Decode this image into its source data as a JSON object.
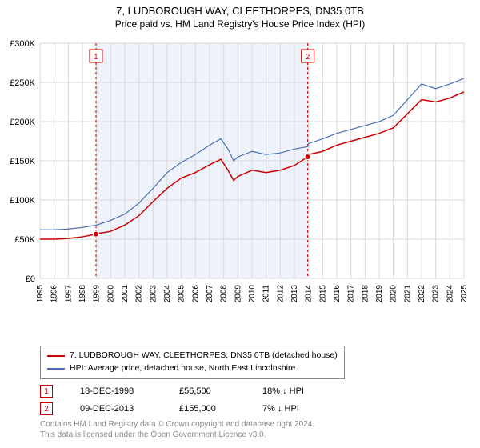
{
  "title": "7, LUDBOROUGH WAY, CLEETHORPES, DN35 0TB",
  "subtitle": "Price paid vs. HM Land Registry's House Price Index (HPI)",
  "chart": {
    "type": "line",
    "background_color": "#ffffff",
    "grid_color": "#d8d8d8",
    "shade_color": "#eef2fa",
    "shade_start_year": 1998.96,
    "shade_end_year": 2013.94,
    "marker_line_color": "#cc0000",
    "marker_line_dash": "3,3",
    "xlim": [
      1995,
      2025
    ],
    "ylim": [
      0,
      300000
    ],
    "ytick_step": 50000,
    "ytick_prefix": "£",
    "ytick_suffix": "K",
    "xticks": [
      1995,
      1996,
      1997,
      1998,
      1999,
      2000,
      2001,
      2002,
      2003,
      2004,
      2005,
      2006,
      2007,
      2008,
      2009,
      2010,
      2011,
      2012,
      2013,
      2014,
      2015,
      2016,
      2017,
      2018,
      2019,
      2020,
      2021,
      2022,
      2023,
      2024,
      2025
    ],
    "series": [
      {
        "key": "property",
        "color": "#cc0000",
        "width": 1.5,
        "points": [
          {
            "x": 1995,
            "y": 50000
          },
          {
            "x": 1996,
            "y": 50000
          },
          {
            "x": 1997,
            "y": 51000
          },
          {
            "x": 1998,
            "y": 53000
          },
          {
            "x": 1998.96,
            "y": 56500
          },
          {
            "x": 1999,
            "y": 57000
          },
          {
            "x": 2000,
            "y": 60000
          },
          {
            "x": 2001,
            "y": 68000
          },
          {
            "x": 2002,
            "y": 80000
          },
          {
            "x": 2003,
            "y": 98000
          },
          {
            "x": 2004,
            "y": 115000
          },
          {
            "x": 2005,
            "y": 128000
          },
          {
            "x": 2006,
            "y": 135000
          },
          {
            "x": 2007,
            "y": 145000
          },
          {
            "x": 2007.8,
            "y": 152000
          },
          {
            "x": 2008.3,
            "y": 138000
          },
          {
            "x": 2008.7,
            "y": 125000
          },
          {
            "x": 2009,
            "y": 130000
          },
          {
            "x": 2010,
            "y": 138000
          },
          {
            "x": 2011,
            "y": 135000
          },
          {
            "x": 2012,
            "y": 138000
          },
          {
            "x": 2013,
            "y": 144000
          },
          {
            "x": 2013.94,
            "y": 155000
          },
          {
            "x": 2014,
            "y": 158000
          },
          {
            "x": 2015,
            "y": 162000
          },
          {
            "x": 2016,
            "y": 170000
          },
          {
            "x": 2017,
            "y": 175000
          },
          {
            "x": 2018,
            "y": 180000
          },
          {
            "x": 2019,
            "y": 185000
          },
          {
            "x": 2020,
            "y": 192000
          },
          {
            "x": 2021,
            "y": 210000
          },
          {
            "x": 2022,
            "y": 228000
          },
          {
            "x": 2023,
            "y": 225000
          },
          {
            "x": 2024,
            "y": 230000
          },
          {
            "x": 2025,
            "y": 238000
          }
        ]
      },
      {
        "key": "hpi",
        "color": "#4a6fb3",
        "width": 1.2,
        "points": [
          {
            "x": 1995,
            "y": 62000
          },
          {
            "x": 1996,
            "y": 62000
          },
          {
            "x": 1997,
            "y": 63000
          },
          {
            "x": 1998,
            "y": 65000
          },
          {
            "x": 1999,
            "y": 68000
          },
          {
            "x": 2000,
            "y": 74000
          },
          {
            "x": 2001,
            "y": 82000
          },
          {
            "x": 2002,
            "y": 96000
          },
          {
            "x": 2003,
            "y": 115000
          },
          {
            "x": 2004,
            "y": 135000
          },
          {
            "x": 2005,
            "y": 148000
          },
          {
            "x": 2006,
            "y": 158000
          },
          {
            "x": 2007,
            "y": 170000
          },
          {
            "x": 2007.8,
            "y": 178000
          },
          {
            "x": 2008.3,
            "y": 165000
          },
          {
            "x": 2008.7,
            "y": 150000
          },
          {
            "x": 2009,
            "y": 155000
          },
          {
            "x": 2010,
            "y": 162000
          },
          {
            "x": 2011,
            "y": 158000
          },
          {
            "x": 2012,
            "y": 160000
          },
          {
            "x": 2013,
            "y": 165000
          },
          {
            "x": 2013.94,
            "y": 168000
          },
          {
            "x": 2014,
            "y": 172000
          },
          {
            "x": 2015,
            "y": 178000
          },
          {
            "x": 2016,
            "y": 185000
          },
          {
            "x": 2017,
            "y": 190000
          },
          {
            "x": 2018,
            "y": 195000
          },
          {
            "x": 2019,
            "y": 200000
          },
          {
            "x": 2020,
            "y": 208000
          },
          {
            "x": 2021,
            "y": 228000
          },
          {
            "x": 2022,
            "y": 248000
          },
          {
            "x": 2023,
            "y": 242000
          },
          {
            "x": 2024,
            "y": 248000
          },
          {
            "x": 2025,
            "y": 255000
          }
        ]
      }
    ],
    "markers": [
      {
        "n": "1",
        "x": 1998.96,
        "y": 56500
      },
      {
        "n": "2",
        "x": 2013.94,
        "y": 155000
      }
    ]
  },
  "legend": {
    "items": [
      {
        "color": "#cc0000",
        "label": "7, LUDBOROUGH WAY, CLEETHORPES, DN35 0TB (detached house)"
      },
      {
        "color": "#4a6fb3",
        "label": "HPI: Average price, detached house, North East Lincolnshire"
      }
    ]
  },
  "marker_table": [
    {
      "n": "1",
      "date": "18-DEC-1998",
      "price": "£56,500",
      "delta": "18% ↓ HPI"
    },
    {
      "n": "2",
      "date": "09-DEC-2013",
      "price": "£155,000",
      "delta": "7% ↓ HPI"
    }
  ],
  "footer": {
    "line1": "Contains HM Land Registry data © Crown copyright and database right 2024.",
    "line2": "This data is licensed under the Open Government Licence v3.0."
  }
}
